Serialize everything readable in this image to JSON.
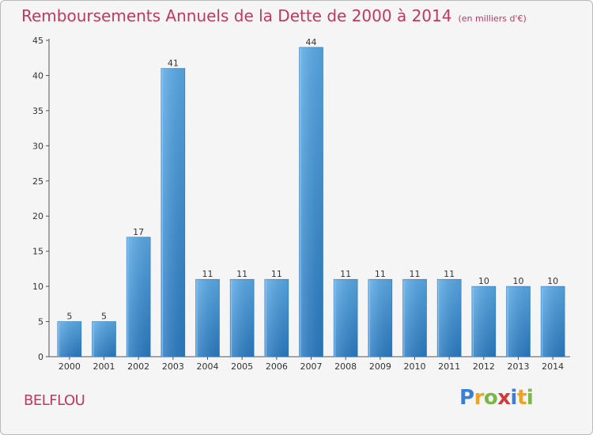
{
  "header": {
    "title": "Remboursements Annuels de la Dette de 2000 à 2014",
    "unit": "(en milliers d'€)"
  },
  "commune": "BELFLOU",
  "logo": {
    "letters": [
      {
        "char": "P",
        "color": "#3a7fd5"
      },
      {
        "char": "r",
        "color": "#f0a320"
      },
      {
        "char": "o",
        "color": "#7ab648"
      },
      {
        "char": "x",
        "color": "#d43a3a"
      },
      {
        "char": "i",
        "color": "#3a7fd5"
      },
      {
        "char": "t",
        "color": "#f0a320"
      },
      {
        "char": "i",
        "color": "#7ab648"
      }
    ]
  },
  "chart_data": {
    "type": "bar",
    "categories": [
      "2000",
      "2001",
      "2002",
      "2003",
      "2004",
      "2005",
      "2006",
      "2007",
      "2008",
      "2009",
      "2010",
      "2011",
      "2012",
      "2013",
      "2014"
    ],
    "values": [
      5,
      5,
      17,
      41,
      11,
      11,
      11,
      44,
      11,
      11,
      11,
      11,
      10,
      10,
      10
    ],
    "title": "Remboursements Annuels de la Dette de 2000 à 2014",
    "ylabel": "",
    "xlabel": "",
    "ylim": [
      0,
      45
    ],
    "yticks": [
      0,
      5,
      10,
      15,
      20,
      25,
      30,
      35,
      40,
      45
    ],
    "bar_color": "#3d91d8",
    "grid": false
  }
}
